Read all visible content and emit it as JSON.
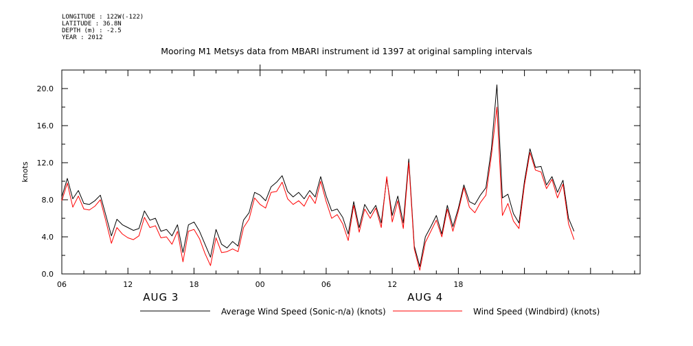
{
  "header": {
    "longitude": "LONGITUDE : 122W(-122)",
    "latitude": "LATITUDE : 36.8N",
    "depth": "DEPTH (m) : -2.5",
    "year": "YEAR : 2012"
  },
  "chart_data": {
    "type": "line",
    "title": "Mooring M1 Metsys data from MBARI instrument id 1397 at original sampling intervals",
    "ylabel": "knots",
    "xlabel": "",
    "ylim": [
      0,
      22
    ],
    "yticks": [
      "0.0",
      "4.0",
      "8.0",
      "12.0",
      "16.0",
      "20.0"
    ],
    "ytick_values": [
      0,
      4,
      8,
      12,
      16,
      20
    ],
    "xlim": [
      6,
      58.5
    ],
    "xticks": [
      "06",
      "12",
      "18",
      "00",
      "06",
      "12",
      "18"
    ],
    "xtick_values": [
      6,
      12,
      18,
      24,
      30,
      36,
      42
    ],
    "date_labels": [
      {
        "text": "AUG  3",
        "at": 15
      },
      {
        "text": "AUG  4",
        "at": 39
      }
    ],
    "grid": false,
    "legend_position": "bottom",
    "x_unit": "hours since 00 AUG 3",
    "series": [
      {
        "name": "Average Wind Speed (Sonic-n/a) (knots)",
        "color": "#000000",
        "x": [
          6.0,
          6.5,
          7.0,
          7.5,
          8.0,
          8.5,
          9.0,
          9.5,
          10.0,
          10.5,
          11.0,
          11.5,
          12.0,
          12.5,
          13.0,
          13.5,
          14.0,
          14.5,
          15.0,
          15.5,
          16.0,
          16.5,
          17.0,
          17.5,
          18.0,
          18.5,
          19.0,
          19.5,
          20.0,
          20.5,
          21.0,
          21.5,
          22.0,
          22.5,
          23.0,
          23.5,
          24.0,
          24.5,
          25.0,
          25.5,
          26.0,
          26.5,
          27.0,
          27.5,
          28.0,
          28.5,
          29.0,
          29.5,
          30.0,
          30.5,
          31.0,
          31.5,
          32.0,
          32.5,
          33.0,
          33.5,
          34.0,
          34.5,
          35.0,
          35.5,
          36.0,
          36.5,
          37.0,
          37.5,
          38.0,
          38.5,
          39.0,
          39.5,
          40.0,
          40.5,
          41.0,
          41.5,
          42.0,
          42.5,
          43.0,
          43.5,
          44.0,
          44.5,
          45.0,
          45.5,
          46.0,
          46.5,
          47.0,
          47.5,
          48.0,
          48.5,
          49.0,
          49.5,
          50.0,
          50.5,
          51.0,
          51.5,
          52.0,
          52.5
        ],
        "y": [
          8.3,
          10.3,
          8.1,
          9.0,
          7.6,
          7.5,
          7.9,
          8.5,
          6.3,
          4.1,
          5.9,
          5.3,
          5.0,
          4.7,
          4.9,
          6.8,
          5.8,
          6.0,
          4.6,
          4.8,
          4.1,
          5.3,
          2.3,
          5.3,
          5.6,
          4.6,
          3.2,
          1.8,
          4.8,
          3.2,
          2.8,
          3.5,
          3.0,
          5.8,
          6.6,
          8.8,
          8.5,
          7.9,
          9.4,
          9.9,
          10.6,
          8.9,
          8.3,
          8.8,
          8.1,
          9.0,
          8.3,
          10.5,
          8.4,
          6.8,
          7.0,
          6.1,
          4.3,
          7.8,
          5.0,
          7.5,
          6.5,
          7.4,
          5.5,
          10.3,
          6.3,
          8.4,
          5.5,
          12.4,
          3.0,
          0.8,
          4.0,
          5.1,
          6.3,
          4.3,
          7.4,
          5.1,
          7.1,
          9.6,
          7.8,
          7.5,
          8.5,
          9.3,
          13.5,
          20.4,
          8.2,
          8.6,
          6.5,
          5.5,
          10.0,
          13.5,
          11.5,
          11.6,
          9.6,
          10.5,
          8.8,
          10.1,
          6.0,
          4.6
        ]
      },
      {
        "name": "Wind Speed (Windbird) (knots)",
        "color": "#ff0000",
        "x": [
          6.0,
          6.5,
          7.0,
          7.5,
          8.0,
          8.5,
          9.0,
          9.5,
          10.0,
          10.5,
          11.0,
          11.5,
          12.0,
          12.5,
          13.0,
          13.5,
          14.0,
          14.5,
          15.0,
          15.5,
          16.0,
          16.5,
          17.0,
          17.5,
          18.0,
          18.5,
          19.0,
          19.5,
          20.0,
          20.5,
          21.0,
          21.5,
          22.0,
          22.5,
          23.0,
          23.5,
          24.0,
          24.5,
          25.0,
          25.5,
          26.0,
          26.5,
          27.0,
          27.5,
          28.0,
          28.5,
          29.0,
          29.5,
          30.0,
          30.5,
          31.0,
          31.5,
          32.0,
          32.5,
          33.0,
          33.5,
          34.0,
          34.5,
          35.0,
          35.5,
          36.0,
          36.5,
          37.0,
          37.5,
          38.0,
          38.5,
          39.0,
          39.5,
          40.0,
          40.5,
          41.0,
          41.5,
          42.0,
          42.5,
          43.0,
          43.5,
          44.0,
          44.5,
          45.0,
          45.5,
          46.0,
          46.5,
          47.0,
          47.5,
          48.0,
          48.5,
          49.0,
          49.5,
          50.0,
          50.5,
          51.0,
          51.5,
          52.0,
          52.5
        ],
        "y": [
          7.9,
          9.8,
          7.2,
          8.4,
          7.0,
          6.9,
          7.3,
          8.0,
          5.7,
          3.3,
          5.0,
          4.3,
          3.9,
          3.7,
          4.1,
          6.1,
          5.0,
          5.2,
          3.9,
          4.0,
          3.2,
          4.6,
          1.3,
          4.6,
          4.8,
          3.8,
          2.2,
          0.9,
          3.9,
          2.3,
          2.4,
          2.7,
          2.4,
          5.0,
          5.9,
          8.2,
          7.5,
          7.1,
          8.8,
          8.9,
          9.9,
          8.1,
          7.5,
          7.9,
          7.3,
          8.5,
          7.6,
          10.0,
          7.8,
          6.0,
          6.4,
          5.4,
          3.6,
          7.4,
          4.5,
          7.0,
          6.0,
          7.1,
          5.0,
          10.5,
          5.6,
          7.9,
          4.9,
          12.0,
          2.7,
          0.4,
          3.4,
          4.6,
          5.8,
          4.0,
          7.0,
          4.6,
          6.8,
          9.3,
          7.2,
          6.6,
          7.7,
          8.5,
          12.8,
          18.0,
          6.3,
          7.6,
          5.7,
          4.9,
          9.6,
          13.1,
          11.2,
          11.0,
          9.2,
          10.2,
          8.2,
          9.7,
          5.4,
          3.7
        ]
      }
    ]
  }
}
